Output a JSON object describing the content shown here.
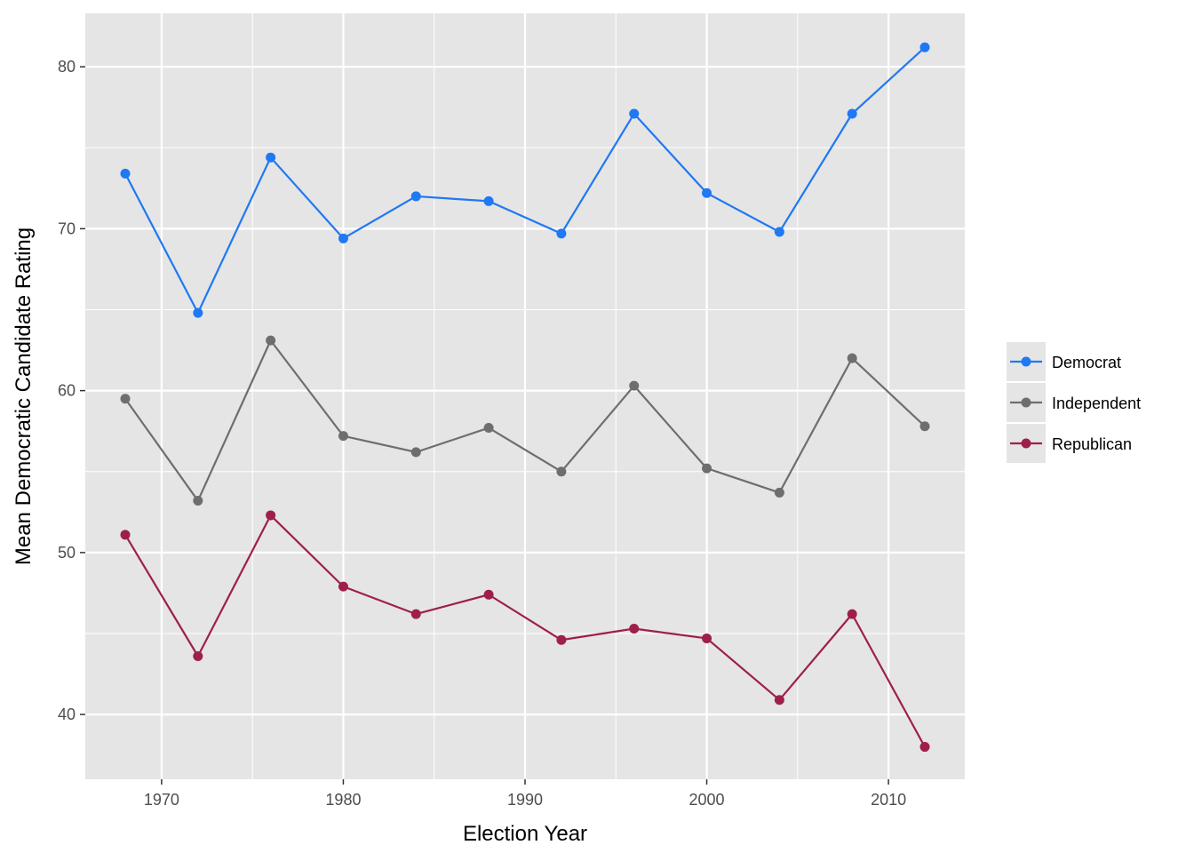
{
  "chart_data": {
    "type": "line",
    "xlabel": "Election Year",
    "ylabel": "Mean Democratic Candidate Rating",
    "x": [
      1968,
      1972,
      1976,
      1980,
      1984,
      1988,
      1992,
      1996,
      2000,
      2004,
      2008,
      2012
    ],
    "xlim": [
      1965.8,
      2014.2
    ],
    "ylim": [
      36,
      83.3
    ],
    "x_ticks": [
      1970,
      1980,
      1990,
      2000,
      2010
    ],
    "y_ticks": [
      40,
      50,
      60,
      70,
      80
    ],
    "x_tick_labels": [
      "1970",
      "1980",
      "1990",
      "2000",
      "2010"
    ],
    "y_tick_labels": [
      "40",
      "50",
      "60",
      "70",
      "80"
    ],
    "grid": true,
    "legend_position": "right",
    "colors": {
      "panel": "#e5e5e5",
      "grid": "#ffffff",
      "tick": "#4d4d4d"
    },
    "series": [
      {
        "name": "Democrat",
        "color": "#1f78f4",
        "values": [
          73.4,
          64.8,
          74.4,
          69.4,
          72.0,
          71.7,
          69.7,
          77.1,
          72.2,
          69.8,
          77.1,
          81.2
        ]
      },
      {
        "name": "Independent",
        "color": "#6e6e6e",
        "values": [
          59.5,
          53.2,
          63.1,
          57.2,
          56.2,
          57.7,
          55.0,
          60.3,
          55.2,
          53.7,
          62.0,
          57.8
        ]
      },
      {
        "name": "Republican",
        "color": "#9e1f4c",
        "values": [
          51.1,
          43.6,
          52.3,
          47.9,
          46.2,
          47.4,
          44.6,
          45.3,
          44.7,
          40.9,
          46.2,
          38.0
        ]
      }
    ]
  }
}
